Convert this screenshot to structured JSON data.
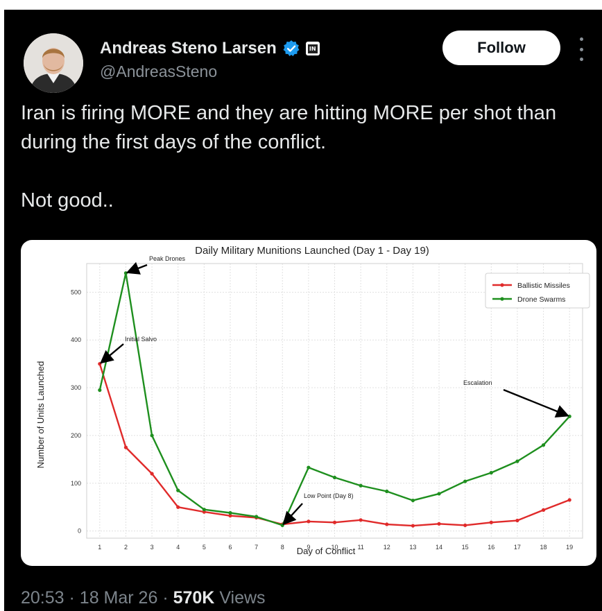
{
  "tweet": {
    "author_name": "Andreas Steno Larsen",
    "author_handle": "@AndreasSteno",
    "affiliate_badge": "IN",
    "follow_label": "Follow",
    "text": [
      "Iran is firing MORE and they are hitting MORE per shot than during the first days of the conflict.",
      "Not good.."
    ],
    "time": "20:53",
    "separator": "·",
    "date": "18 Mar 26",
    "views_count": "570K",
    "views_label": "Views",
    "colors": {
      "background": "#000000",
      "text": "#e7e9ea",
      "muted": "#7c848b",
      "verified": "#1d9bf0"
    },
    "icons": [
      "verified-badge-icon",
      "affiliate-badge-icon",
      "more-options-icon"
    ]
  },
  "chart_data": {
    "type": "line",
    "title": "Daily Military Munitions Launched (Day 1 - Day 19)",
    "xlabel": "Day of Conflict",
    "ylabel": "Number of Units Launched",
    "x": [
      1,
      2,
      3,
      4,
      5,
      6,
      7,
      8,
      9,
      10,
      11,
      12,
      13,
      14,
      15,
      16,
      17,
      18,
      19
    ],
    "yticks": [
      0,
      100,
      200,
      300,
      400,
      500
    ],
    "ylim": [
      -15,
      560
    ],
    "grid": true,
    "legend": "top-right",
    "series": [
      {
        "name": "Ballistic Missiles",
        "color": "#e02a2a",
        "values": [
          350,
          175,
          120,
          50,
          40,
          32,
          28,
          14,
          20,
          18,
          23,
          14,
          11,
          15,
          12,
          18,
          22,
          44,
          65
        ]
      },
      {
        "name": "Drone Swarms",
        "color": "#1e8f1e",
        "values": [
          295,
          540,
          200,
          85,
          45,
          38,
          30,
          12,
          133,
          112,
          95,
          83,
          64,
          78,
          104,
          122,
          146,
          180,
          240
        ]
      }
    ],
    "annotations": [
      {
        "text": "Peak Drones",
        "x": 2,
        "y": 540
      },
      {
        "text": "Initial Salvo",
        "x": 1,
        "y": 350
      },
      {
        "text": "Low Point (Day 8)",
        "x": 8,
        "y": 12
      },
      {
        "text": "Escalation",
        "x": 19,
        "y": 240
      }
    ]
  }
}
